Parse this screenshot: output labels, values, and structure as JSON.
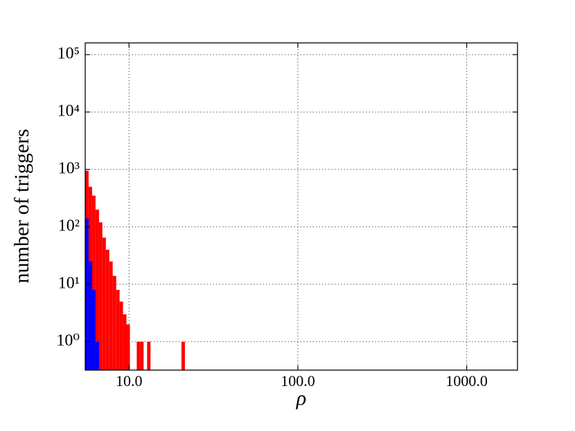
{
  "chart_data": {
    "type": "histogram",
    "xlabel": "ρ",
    "ylabel": "number of triggers",
    "xscale": "log",
    "yscale": "log",
    "grid": true,
    "xlim": [
      5.5,
      2000
    ],
    "ylim": [
      0.32,
      160000
    ],
    "xticks": [
      {
        "value": 10,
        "label": "10.0"
      },
      {
        "value": 100,
        "label": "100.0"
      },
      {
        "value": 1000,
        "label": "1000.0"
      }
    ],
    "yticks": [
      {
        "value": 1,
        "label": "10⁰"
      },
      {
        "value": 10,
        "label": "10¹"
      },
      {
        "value": 100,
        "label": "10²"
      },
      {
        "value": 1000,
        "label": "10³"
      },
      {
        "value": 10000,
        "label": "10⁴"
      },
      {
        "value": 100000,
        "label": "10⁵"
      }
    ],
    "bins": [
      5.5,
      5.76,
      6.04,
      6.33,
      6.64,
      6.95,
      7.29,
      7.64,
      8.0,
      8.39,
      8.79,
      9.21,
      9.65,
      10.12,
      10.6,
      11.11,
      11.64,
      12.2,
      12.79,
      13.4,
      14.05,
      14.72,
      15.43,
      16.17,
      16.94,
      17.76,
      18.61,
      19.5,
      20.44,
      21.42
    ],
    "series": [
      {
        "color": "#ff0000",
        "values": [
          950,
          500,
          350,
          200,
          120,
          65,
          40,
          25,
          14,
          8,
          5,
          3,
          2,
          0,
          0,
          1,
          1,
          0,
          1,
          0,
          0,
          0,
          0,
          0,
          0,
          0,
          0,
          0,
          1
        ]
      },
      {
        "color": "#0000ff",
        "values": [
          140,
          25,
          8,
          1,
          0,
          0,
          0,
          0,
          0,
          0,
          0,
          0,
          0,
          0,
          0,
          0,
          0,
          0,
          0,
          0,
          0,
          0,
          0,
          0,
          0,
          0,
          0,
          0,
          0
        ]
      }
    ]
  }
}
